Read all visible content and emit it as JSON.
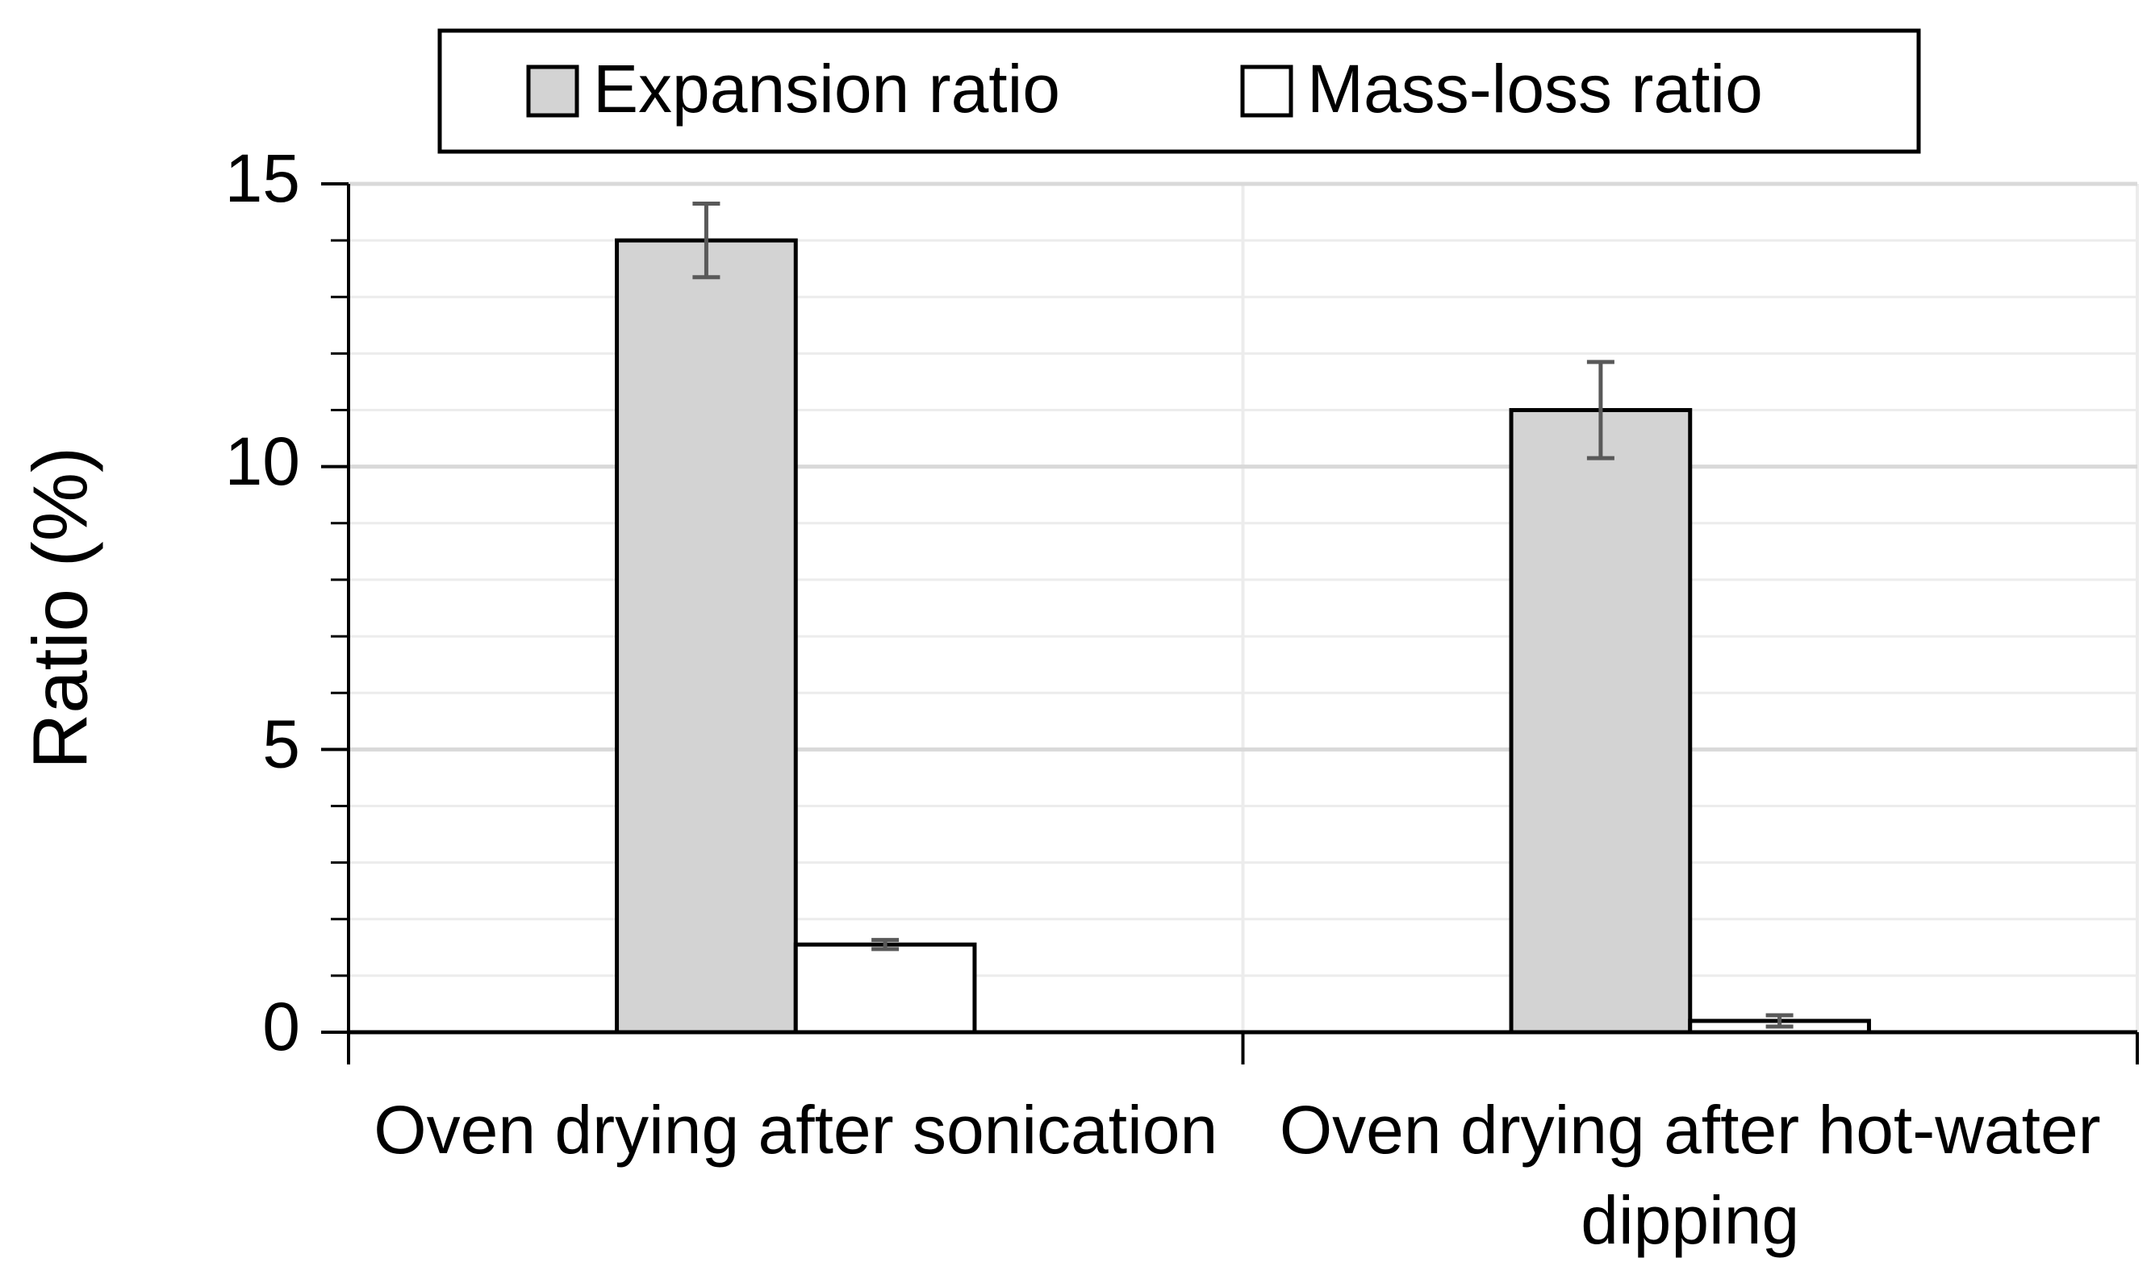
{
  "chart_data": {
    "type": "bar",
    "y_label": "Ratio (%)",
    "categories": [
      "Oven drying after sonication",
      "Oven drying after hot-water dipping"
    ],
    "series": [
      {
        "name": "Expansion ratio",
        "color": "#d3d3d3",
        "values": [
          14.0,
          11.0
        ],
        "errors": [
          0.65,
          0.85
        ]
      },
      {
        "name": "Mass-loss ratio",
        "color": "#ffffff",
        "values": [
          1.55,
          0.2
        ],
        "errors": [
          0.08,
          0.1
        ]
      }
    ],
    "ylim": [
      0,
      15
    ],
    "yticks": [
      0,
      5,
      10,
      15
    ],
    "minor_yticks": [
      1,
      2,
      3,
      4,
      6,
      7,
      8,
      9,
      11,
      12,
      13,
      14
    ],
    "grid": true,
    "legend": "top"
  }
}
